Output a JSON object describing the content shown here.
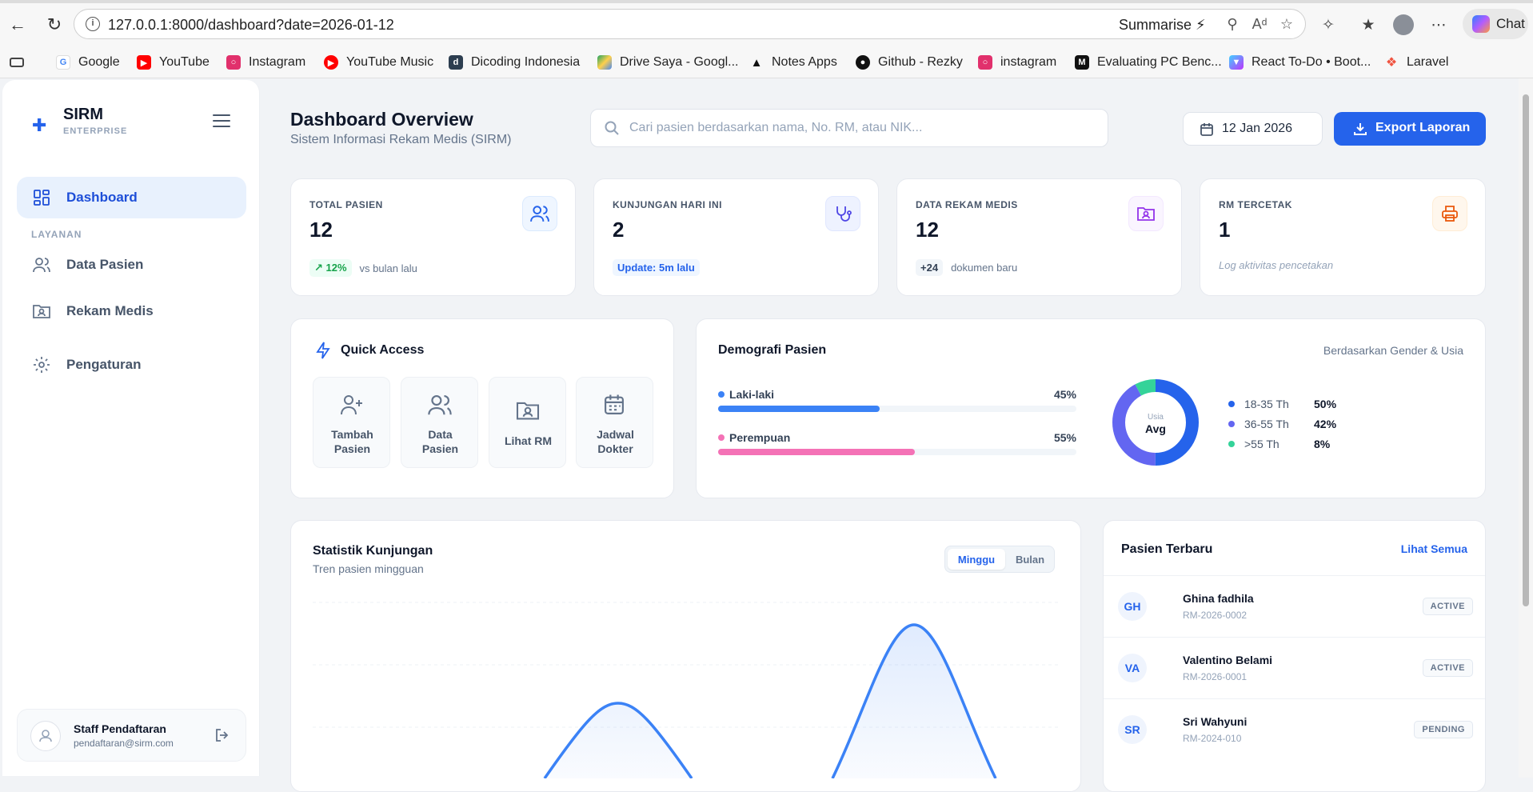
{
  "browser": {
    "url": "127.0.0.1:8000/dashboard?date=2026-01-12",
    "summarise_label": "Summarise",
    "chat_label": "Chat",
    "bookmarks": [
      {
        "label": "Google",
        "icon": "google-icon"
      },
      {
        "label": "YouTube",
        "icon": "youtube-icon"
      },
      {
        "label": "Instagram",
        "icon": "instagram-icon"
      },
      {
        "label": "YouTube Music",
        "icon": "youtube-music-icon"
      },
      {
        "label": "Dicoding Indonesia",
        "icon": "dicoding-icon"
      },
      {
        "label": "Drive Saya - Googl...",
        "icon": "google-drive-icon"
      },
      {
        "label": "Notes Apps",
        "icon": "notes-icon"
      },
      {
        "label": "Github - Rezky",
        "icon": "github-icon"
      },
      {
        "label": "instagram",
        "icon": "instagram-icon"
      },
      {
        "label": "Evaluating PC Benc...",
        "icon": "medium-icon"
      },
      {
        "label": "React To-Do • Boot...",
        "icon": "vite-icon"
      },
      {
        "label": "Laravel",
        "icon": "laravel-icon"
      }
    ]
  },
  "sidebar": {
    "brand": "SIRM",
    "brand_sub": "ENTERPRISE",
    "section_label": "LAYANAN",
    "items": [
      {
        "label": "Dashboard",
        "icon": "dashboard-icon",
        "active": true
      },
      {
        "label": "Data Pasien",
        "icon": "users-icon"
      },
      {
        "label": "Rekam Medis",
        "icon": "folder-user-icon"
      },
      {
        "label": "Pengaturan",
        "icon": "gear-icon"
      }
    ],
    "user": {
      "name": "Staff Pendaftaran",
      "email": "pendaftaran@sirm.com"
    }
  },
  "header": {
    "title": "Dashboard Overview",
    "subtitle": "Sistem Informasi Rekam Medis (SIRM)",
    "search_placeholder": "Cari pasien berdasarkan nama, No. RM, atau NIK...",
    "date": "12 Jan 2026",
    "export_label": "Export Laporan"
  },
  "stats": [
    {
      "label": "TOTAL PASIEN",
      "value": "12",
      "pill": "12%",
      "foot": "vs bulan lalu",
      "icon": "users-icon",
      "color": "#2563eb"
    },
    {
      "label": "KUNJUNGAN HARI INI",
      "value": "2",
      "pill": "Update: 5m lalu",
      "foot": "",
      "icon": "stethoscope-icon",
      "color": "#4f46e5"
    },
    {
      "label": "DATA REKAM MEDIS",
      "value": "12",
      "pill": "+24",
      "foot": "dokumen baru",
      "icon": "folder-user-icon",
      "color": "#9333ea"
    },
    {
      "label": "RM TERCETAK",
      "value": "1",
      "pill": "",
      "foot": "Log aktivitas pencetakan",
      "icon": "printer-icon",
      "color": "#ea580c"
    }
  ],
  "quick_access": {
    "title": "Quick Access",
    "tiles": [
      {
        "line1": "Tambah",
        "line2": "Pasien",
        "icon": "user-plus-icon"
      },
      {
        "line1": "Data",
        "line2": "Pasien",
        "icon": "users-icon"
      },
      {
        "line1": "Lihat RM",
        "line2": "",
        "icon": "folder-user-icon"
      },
      {
        "line1": "Jadwal",
        "line2": "Dokter",
        "icon": "calendar-icon"
      }
    ]
  },
  "demographics": {
    "title": "Demografi Pasien",
    "subtitle": "Berdasarkan Gender & Usia",
    "gender": [
      {
        "label": "Laki-laki",
        "percent": "45%",
        "value": 45,
        "color": "#3b82f6"
      },
      {
        "label": "Perempuan",
        "percent": "55%",
        "value": 55,
        "color": "#f472b6"
      }
    ],
    "donut_small": "Usia",
    "donut_big": "Avg",
    "age": [
      {
        "label": "18-35 Th",
        "percent": "50%",
        "value": 50,
        "color": "#2563eb"
      },
      {
        "label": "36-55 Th",
        "percent": "42%",
        "value": 42,
        "color": "#6366f1"
      },
      {
        "label": ">55 Th",
        "percent": "8%",
        "value": 8,
        "color": "#34d399"
      }
    ]
  },
  "visits": {
    "title": "Statistik Kunjungan",
    "subtitle": "Tren pasien mingguan",
    "toggle": [
      "Minggu",
      "Bulan"
    ],
    "active_toggle": "Minggu"
  },
  "recent": {
    "title": "Pasien Terbaru",
    "link": "Lihat Semua",
    "rows": [
      {
        "initials": "GH",
        "name": "Ghina fadhila",
        "rm": "RM-2026-0002",
        "status": "ACTIVE"
      },
      {
        "initials": "VA",
        "name": "Valentino Belami",
        "rm": "RM-2026-0001",
        "status": "ACTIVE"
      },
      {
        "initials": "SR",
        "name": "Sri Wahyuni",
        "rm": "RM-2024-010",
        "status": "PENDING"
      }
    ]
  }
}
